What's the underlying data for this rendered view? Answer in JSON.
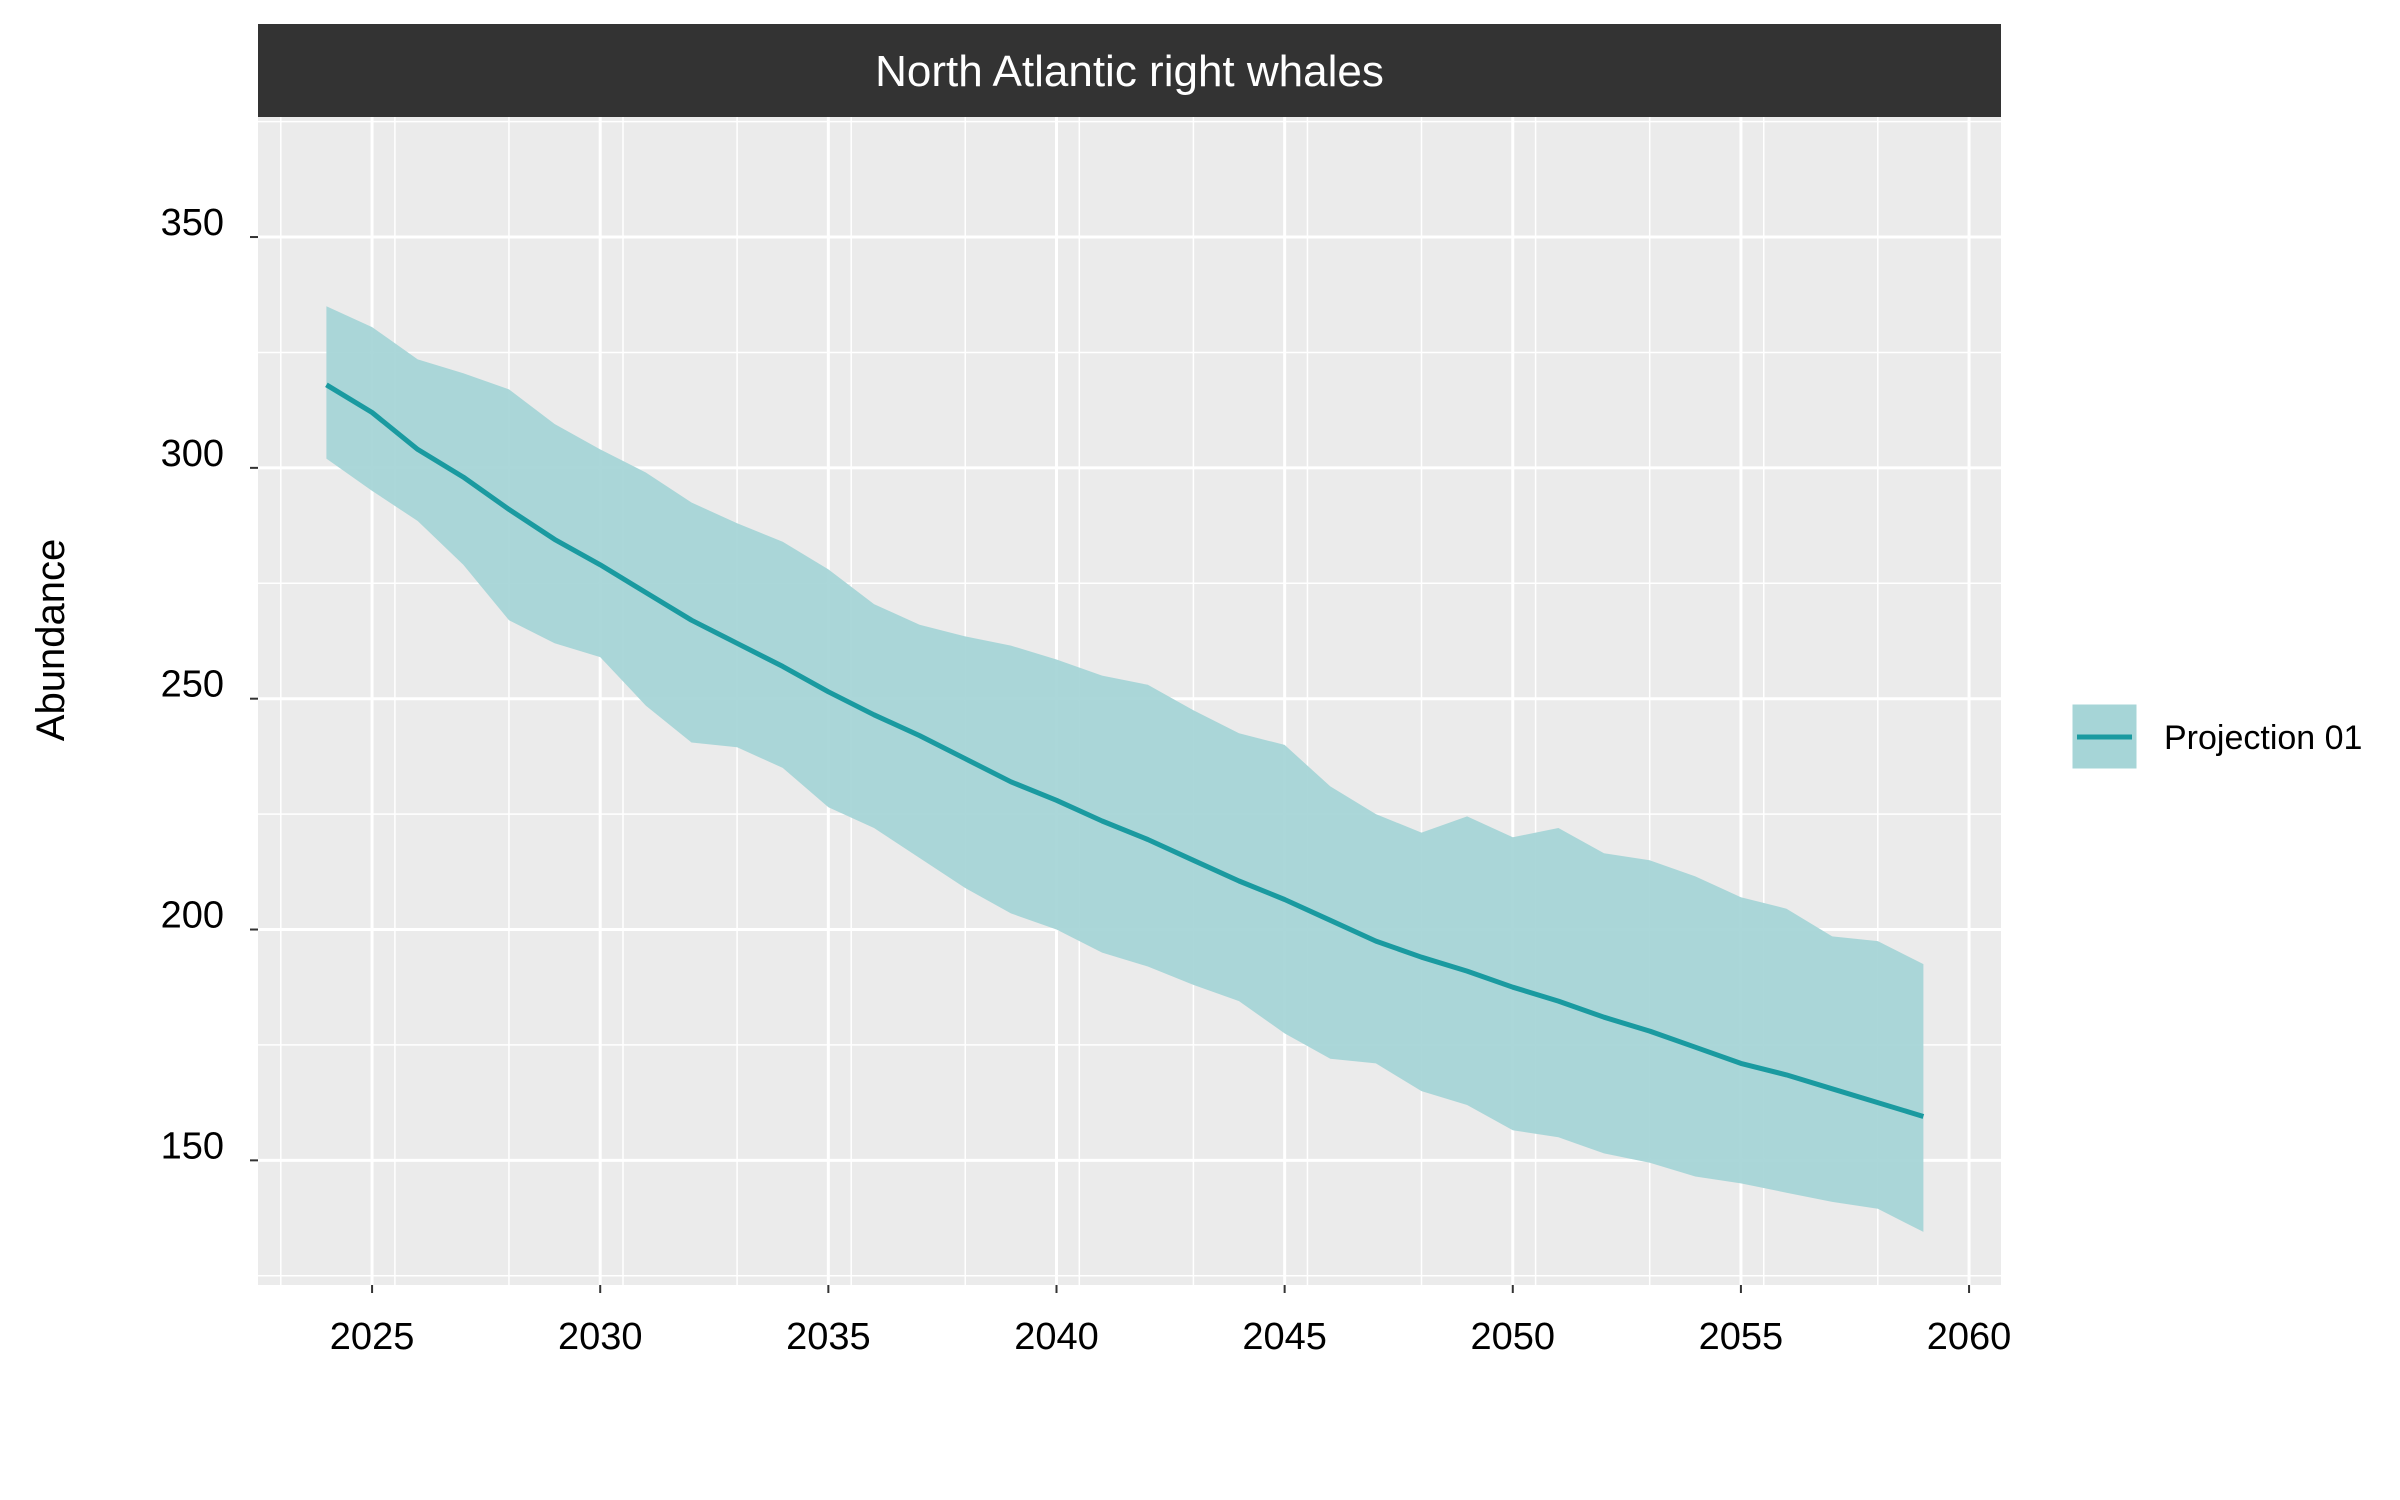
{
  "chart_data": {
    "type": "area",
    "title": "North Atlantic right whales",
    "xlabel": "",
    "ylabel": "Abundance",
    "xlim": [
      2022.5,
      2060.7
    ],
    "ylim": [
      123,
      376
    ],
    "x_ticks": [
      2025,
      2030,
      2035,
      2040,
      2045,
      2050,
      2055,
      2060
    ],
    "y_ticks": [
      150,
      200,
      250,
      300,
      350
    ],
    "grid": true,
    "legend_position": "right",
    "colors": {
      "panel": "#ebebeb",
      "grid": "#ffffff",
      "strip": "#333333",
      "strip_text": "#ffffff",
      "line": "#1a9aa0",
      "ribbon": "#a6d5d7"
    },
    "series": [
      {
        "name": "Projection 01",
        "x": [
          2024,
          2025,
          2026,
          2027,
          2028,
          2029,
          2030,
          2031,
          2032,
          2033,
          2034,
          2035,
          2036,
          2037,
          2038,
          2039,
          2040,
          2041,
          2042,
          2043,
          2044,
          2045,
          2046,
          2047,
          2048,
          2049,
          2050,
          2051,
          2052,
          2053,
          2054,
          2055,
          2056,
          2057,
          2058,
          2059
        ],
        "mean": [
          318,
          312,
          304,
          298,
          291,
          284.5,
          279,
          273,
          267,
          262,
          257,
          251.5,
          246.5,
          242,
          237,
          232,
          228,
          223.5,
          219.5,
          215,
          210.5,
          206.5,
          202,
          197.5,
          194,
          191,
          187.5,
          184.5,
          181,
          178,
          174.5,
          171,
          168.5,
          165.5,
          162.5,
          159.5
        ],
        "upper": [
          335,
          330.5,
          323.5,
          320.5,
          317,
          309.5,
          304,
          299,
          292.5,
          288,
          284,
          278,
          270.5,
          266,
          263.5,
          261.5,
          258.5,
          255,
          253,
          247.5,
          242.5,
          240,
          231,
          225,
          221,
          224.5,
          220,
          222,
          216.5,
          215,
          211.5,
          207,
          204.5,
          198.5,
          197.5,
          192.5
        ],
        "lower": [
          302,
          295,
          288.5,
          279,
          267,
          262,
          259,
          248.5,
          240.5,
          239.5,
          235,
          226.5,
          222,
          215.5,
          209,
          203.5,
          200,
          195,
          192,
          188,
          184.5,
          177.5,
          172,
          171,
          165,
          162,
          156.5,
          155,
          151.5,
          149.5,
          146.5,
          145,
          143,
          141,
          139.5,
          134.5
        ]
      }
    ]
  }
}
